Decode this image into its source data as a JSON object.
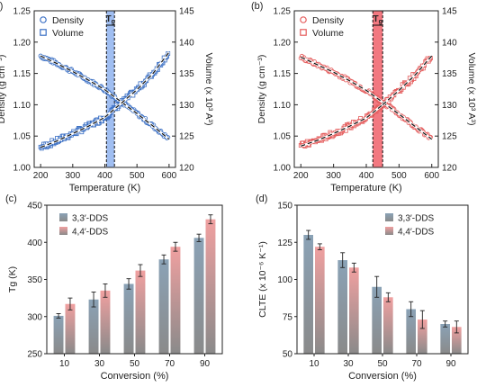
{
  "colors": {
    "a_marker": "#3a6fc4",
    "a_band": "#8fb3ee",
    "b_marker": "#e45b5b",
    "b_band": "#f0606a",
    "fit_line": "#111111",
    "bar_33": "#8aa2b6",
    "bar_44": "#f0a0a0"
  },
  "chart_data": [
    {
      "panel": "(a)",
      "type": "scatter",
      "xlabel": "Temperature (K)",
      "ylabel": "Density (g cm⁻³)",
      "ylabel_right": "Volume (x 10³ A³)",
      "xlim": [
        180,
        620
      ],
      "ylim": [
        1.0,
        1.25
      ],
      "ylim_right": [
        120,
        145
      ],
      "xticks": [
        "200",
        "300",
        "400",
        "500",
        "600"
      ],
      "yticks": [
        "1.00",
        "1.05",
        "1.10",
        "1.15",
        "1.20",
        "1.25"
      ],
      "yticks_right": [
        "120",
        "125",
        "130",
        "135",
        "140",
        "145"
      ],
      "legend": [
        "Density",
        "Volume"
      ],
      "legend_position": "top-left",
      "annotation": "Tg",
      "tg_band": [
        405,
        430
      ],
      "series": [
        {
          "name": "Density",
          "marker": "circle",
          "axis": "left",
          "x": [
            200,
            250,
            300,
            350,
            400,
            450,
            500,
            550,
            600
          ],
          "y": [
            1.178,
            1.166,
            1.153,
            1.139,
            1.124,
            1.105,
            1.086,
            1.066,
            1.045
          ]
        },
        {
          "name": "Volume",
          "marker": "square",
          "axis": "right",
          "x": [
            200,
            250,
            300,
            350,
            400,
            450,
            500,
            550,
            600
          ],
          "y": [
            123.2,
            124.2,
            125.4,
            126.6,
            128.0,
            130.2,
            132.4,
            135.0,
            138.4
          ]
        }
      ]
    },
    {
      "panel": "(b)",
      "type": "scatter",
      "xlabel": "Temperature (K)",
      "ylabel": "Density (g cm⁻³)",
      "ylabel_right": "Volume (x 10³ A³)",
      "xlim": [
        180,
        620
      ],
      "ylim": [
        1.0,
        1.25
      ],
      "ylim_right": [
        120,
        145
      ],
      "xticks": [
        "200",
        "300",
        "400",
        "500",
        "600"
      ],
      "yticks": [
        "1.00",
        "1.05",
        "1.10",
        "1.15",
        "1.20",
        "1.25"
      ],
      "yticks_right": [
        "120",
        "125",
        "130",
        "135",
        "140",
        "145"
      ],
      "legend": [
        "Density",
        "Volume"
      ],
      "legend_position": "top-left",
      "annotation": "Tg",
      "tg_band": [
        420,
        450
      ],
      "series": [
        {
          "name": "Density",
          "marker": "circle",
          "axis": "left",
          "x": [
            200,
            250,
            300,
            350,
            400,
            450,
            500,
            550,
            600
          ],
          "y": [
            1.176,
            1.164,
            1.152,
            1.138,
            1.123,
            1.104,
            1.085,
            1.065,
            1.045
          ]
        },
        {
          "name": "Volume",
          "marker": "square",
          "axis": "right",
          "x": [
            200,
            250,
            300,
            350,
            400,
            450,
            500,
            550,
            600
          ],
          "y": [
            123.4,
            124.3,
            125.4,
            126.6,
            127.9,
            130.0,
            132.3,
            134.8,
            137.8
          ]
        }
      ]
    },
    {
      "panel": "(c)",
      "type": "bar",
      "xlabel": "Conversion (%)",
      "ylabel": "Tg (K)",
      "categories": [
        "10",
        "30",
        "50",
        "70",
        "90"
      ],
      "ylim": [
        250,
        450
      ],
      "yticks": [
        "250",
        "300",
        "350",
        "400",
        "450"
      ],
      "legend_position": "top-left",
      "series": [
        {
          "name": "3,3′-DDS",
          "values": [
            301,
            323,
            344,
            377,
            406
          ],
          "errors": [
            3,
            10,
            7,
            6,
            5
          ]
        },
        {
          "name": "4,4′-DDS",
          "values": [
            317,
            335,
            362,
            394,
            431
          ],
          "errors": [
            8,
            9,
            8,
            6,
            6
          ]
        }
      ]
    },
    {
      "panel": "(d)",
      "type": "bar",
      "xlabel": "Conversion (%)",
      "ylabel": "CLTE (x 10⁻⁶ K⁻¹)",
      "categories": [
        "10",
        "30",
        "50",
        "70",
        "90"
      ],
      "ylim": [
        50,
        150
      ],
      "yticks": [
        "50",
        "75",
        "100",
        "125",
        "150"
      ],
      "legend_position": "top-right",
      "series": [
        {
          "name": "3,3′-DDS",
          "values": [
            130,
            113,
            95,
            80,
            70
          ],
          "errors": [
            3,
            5,
            7,
            5,
            2
          ]
        },
        {
          "name": "4,4′-DDS",
          "values": [
            122,
            108,
            88,
            73,
            68
          ],
          "errors": [
            2,
            3,
            3,
            6,
            4
          ]
        }
      ]
    }
  ]
}
